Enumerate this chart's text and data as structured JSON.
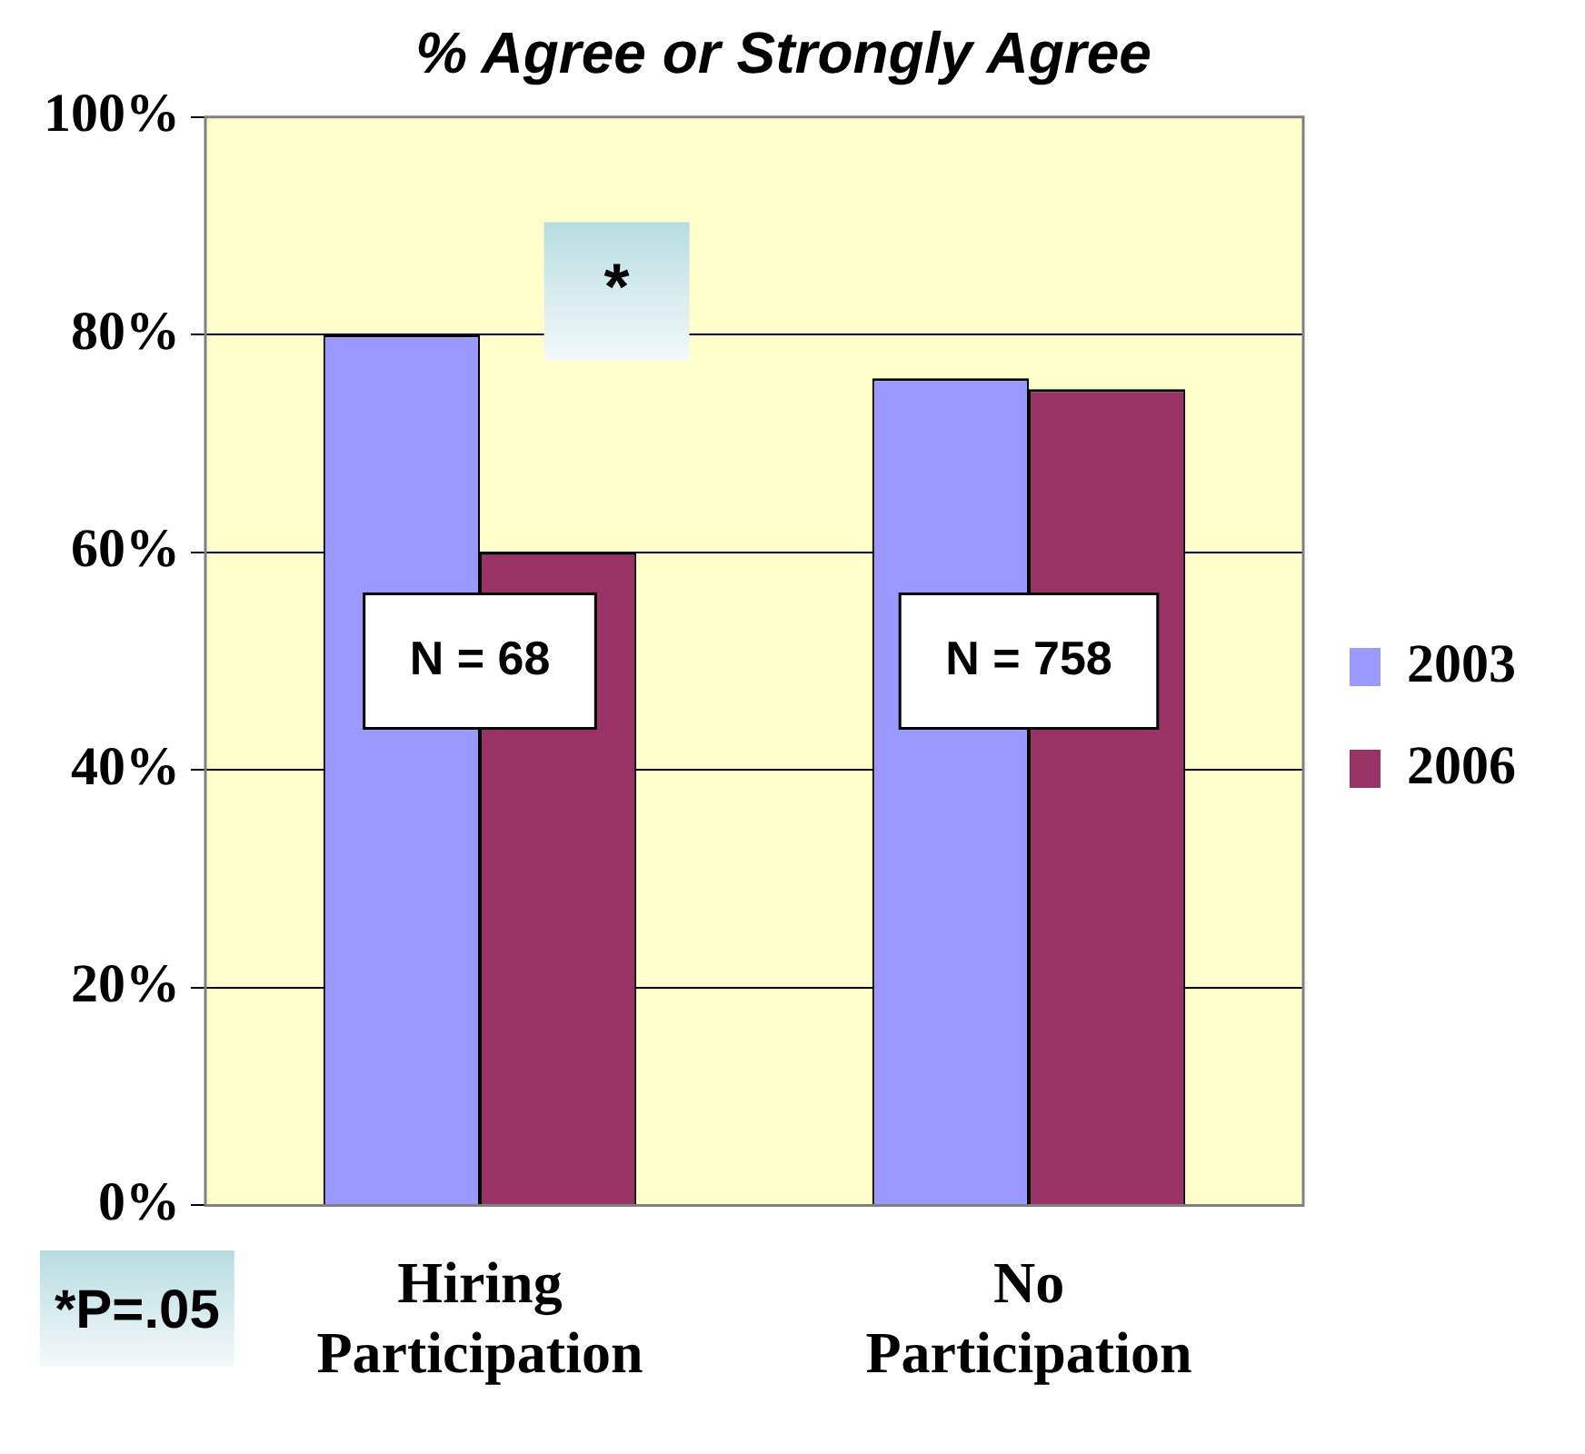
{
  "chart_data": {
    "type": "bar",
    "title": "% Agree or Strongly Agree",
    "categories": [
      "Hiring Participation",
      "No Participation"
    ],
    "series": [
      {
        "name": "2003",
        "color": "#9999ff",
        "values": [
          80,
          76
        ]
      },
      {
        "name": "2006",
        "color": "#993366",
        "values": [
          60,
          75
        ]
      }
    ],
    "ylim": [
      0,
      100
    ],
    "yticks": [
      {
        "value": 0,
        "label": "0%"
      },
      {
        "value": 20,
        "label": "20%"
      },
      {
        "value": 40,
        "label": "40%"
      },
      {
        "value": 60,
        "label": "60%"
      },
      {
        "value": 80,
        "label": "80%"
      },
      {
        "value": 100,
        "label": "100%"
      }
    ],
    "grid": "y",
    "legend": "right",
    "annotations": [
      "*",
      {
        "text": "N = 68",
        "x": "Hiring Participation",
        "y": 50
      },
      {
        "text": "N = 758",
        "x": "No Participation",
        "y": 50
      },
      "*P=.05"
    ]
  }
}
